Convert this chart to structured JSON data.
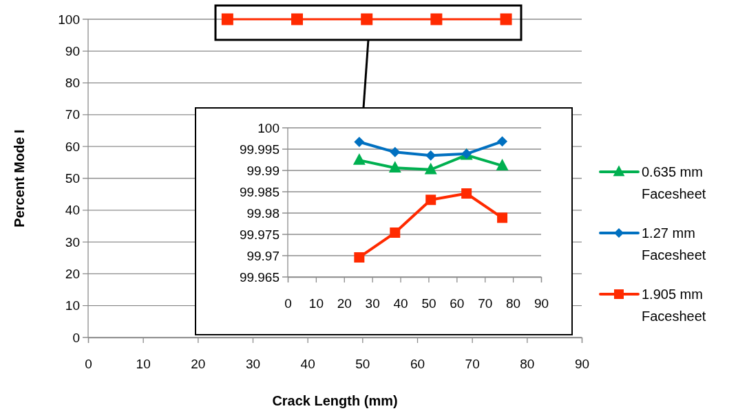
{
  "chart_data": [
    {
      "type": "line",
      "xlabel": "Crack Length (mm)",
      "ylabel": "Percent Mode I",
      "x": [
        25.4,
        38.1,
        50.8,
        63.5,
        76.2
      ],
      "xlim": [
        0,
        90
      ],
      "xticks": [
        0,
        10,
        20,
        30,
        40,
        50,
        60,
        70,
        80,
        90
      ],
      "ylim": [
        0,
        100
      ],
      "yticks": [
        0,
        10,
        20,
        30,
        40,
        50,
        60,
        70,
        80,
        90,
        100
      ],
      "grid": "y",
      "legend": "right",
      "series": [
        {
          "name": "0.635 mm Facesheet",
          "color": "#00b050",
          "marker": "triangle",
          "values": [
            null,
            null,
            null,
            null,
            null
          ]
        },
        {
          "name": "1.27 mm Facesheet",
          "color": "#0070c0",
          "marker": "diamond",
          "values": [
            null,
            null,
            null,
            null,
            null
          ]
        },
        {
          "name": "1.905 mm Facesheet",
          "color": "#ff2a00",
          "marker": "square",
          "values": [
            100,
            100,
            100,
            100,
            100
          ]
        }
      ]
    },
    {
      "type": "line",
      "x": [
        25.4,
        38.1,
        50.8,
        63.5,
        76.2
      ],
      "xlim": [
        0,
        90
      ],
      "xticks": [
        0,
        10,
        20,
        30,
        40,
        50,
        60,
        70,
        80,
        90
      ],
      "ylim": [
        99.965,
        100
      ],
      "yticks": [
        99.965,
        99.97,
        99.975,
        99.98,
        99.985,
        99.99,
        99.995,
        100
      ],
      "grid": "y",
      "series": [
        {
          "color": "#00b050",
          "marker": "triangle",
          "values": [
            99.9924,
            99.9906,
            99.9902,
            99.9936,
            99.9911
          ]
        },
        {
          "color": "#0070c0",
          "marker": "diamond",
          "values": [
            99.9967,
            99.9943,
            99.9935,
            99.9939,
            99.9968
          ]
        },
        {
          "color": "#ff2a00",
          "marker": "square",
          "values": [
            99.9696,
            99.9754,
            99.9831,
            99.9846,
            99.9789
          ]
        }
      ]
    }
  ]
}
